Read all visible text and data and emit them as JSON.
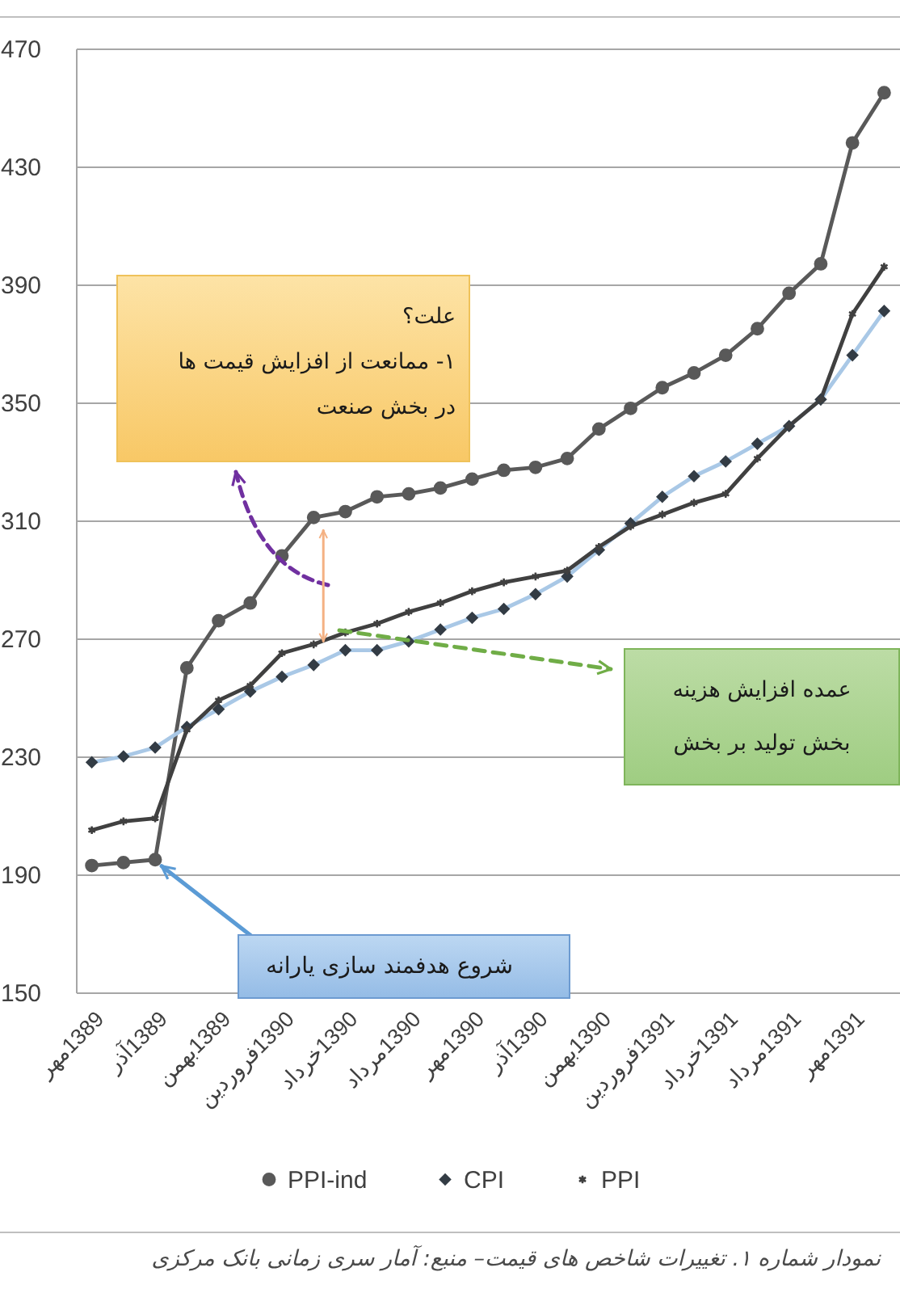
{
  "chart_data": {
    "type": "line",
    "categories": [
      "1389مهر",
      null,
      "1389آذر",
      null,
      "1389بهمن",
      null,
      "1390فروردین",
      null,
      "1390خرداد",
      null,
      "1390مرداد",
      null,
      "1390مهر",
      null,
      "1390آذر",
      null,
      "1390بهمن",
      null,
      "1391فروردین",
      null,
      "1391خرداد",
      null,
      "1391مرداد",
      null,
      "1391مهر",
      null
    ],
    "series": [
      {
        "name": "PPI-ind",
        "color": "#595959",
        "marker": "circle",
        "values": [
          193,
          194,
          195,
          260,
          276,
          282,
          298,
          311,
          313,
          318,
          319,
          321,
          324,
          327,
          328,
          331,
          341,
          348,
          355,
          360,
          366,
          375,
          387,
          397,
          438,
          455
        ]
      },
      {
        "name": "CPI",
        "color": "#a9c8e6",
        "marker": "diamond",
        "values": [
          228,
          230,
          233,
          240,
          246,
          252,
          257,
          261,
          266,
          266,
          269,
          273,
          277,
          280,
          285,
          291,
          300,
          309,
          318,
          325,
          330,
          336,
          342,
          351,
          366,
          381
        ]
      },
      {
        "name": "PPI",
        "color": "#404040",
        "marker": "cross",
        "values": [
          205,
          208,
          209,
          239,
          249,
          254,
          265,
          268,
          272,
          275,
          279,
          282,
          286,
          289,
          291,
          293,
          301,
          308,
          312,
          316,
          319,
          331,
          342,
          351,
          380,
          396
        ]
      }
    ],
    "ylim": [
      150,
      470
    ],
    "yticks": [
      150,
      190,
      230,
      270,
      310,
      350,
      390,
      430,
      470
    ],
    "grid": "y",
    "legend": "bottom",
    "line_style": "solid",
    "annotations": [
      {
        "text": "شروع هدفمند سازی یارانه",
        "x": "1389آذر",
        "y": 195
      },
      "علت؟\n۱- ممانعت از افزایش قیمت ها\nدر بخش صنعت",
      "عمده افزایش هزینه\nبخش تولید بر بخش",
      "نمودار شماره ۱. تغییرات شاخص های قیمت– منبع: آمار سری زمانی بانک مرکزی"
    ]
  }
}
